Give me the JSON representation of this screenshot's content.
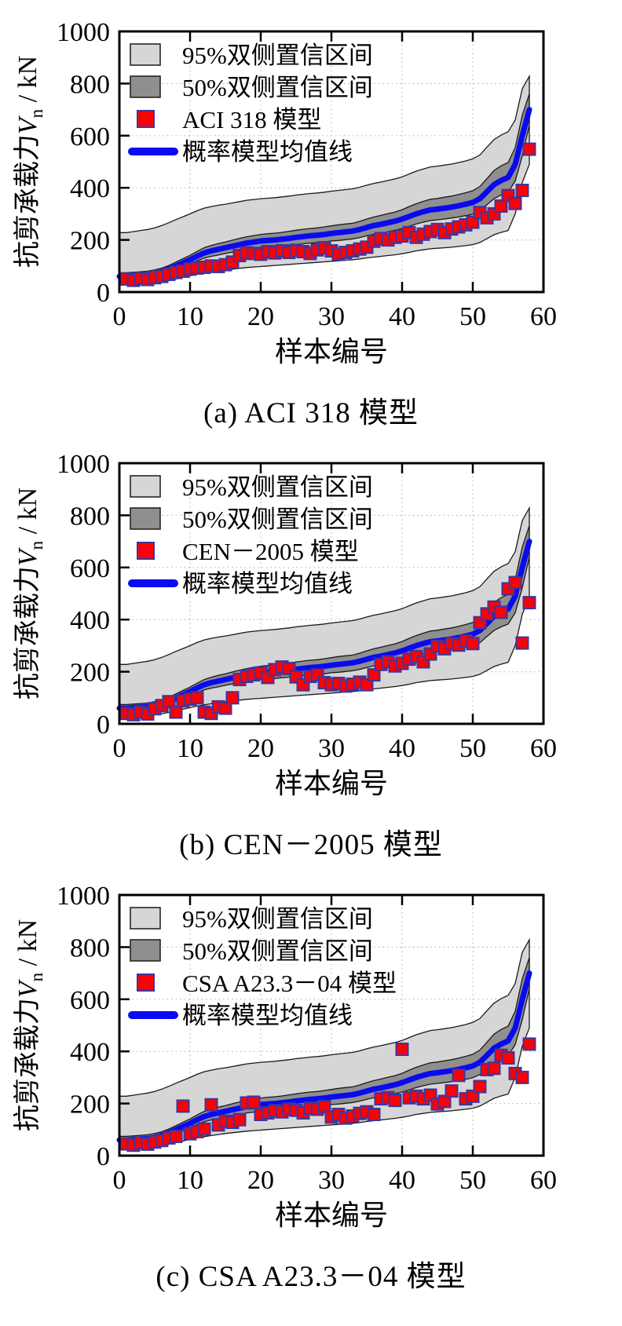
{
  "page": {
    "background": "#ffffff"
  },
  "colors": {
    "ci95_fill": "#d6d6d6",
    "ci50_fill": "#8f8f8f",
    "band_edge": "#1a1a1a",
    "mean_line": "#0a0af0",
    "point_fill": "#fa0205",
    "point_stroke": "#3d35a0",
    "axis": "#000000",
    "grid": "#b8b8b8",
    "text": "#000000"
  },
  "axes": {
    "xlabel": "样本编号",
    "ylabel_prefix": "抗剪承载力",
    "ylabel_variable": "V",
    "ylabel_subscript": "n",
    "ylabel_suffix": " / kN",
    "x_ticks": [
      0,
      10,
      20,
      30,
      40,
      50,
      60
    ],
    "y_ticks": [
      0,
      200,
      400,
      600,
      800,
      1000
    ],
    "x_range": [
      0,
      60
    ],
    "y_range": [
      0,
      1000
    ],
    "grid": "dotted"
  },
  "confidence_model": {
    "x": [
      1,
      2,
      3,
      4,
      5,
      6,
      7,
      8,
      9,
      10,
      11,
      12,
      13,
      14,
      15,
      16,
      17,
      18,
      19,
      20,
      21,
      22,
      23,
      24,
      25,
      26,
      27,
      28,
      29,
      30,
      31,
      32,
      33,
      34,
      35,
      36,
      37,
      38,
      39,
      40,
      41,
      42,
      43,
      44,
      45,
      46,
      47,
      48,
      49,
      50,
      51,
      52,
      53,
      54,
      55,
      56,
      57,
      58
    ],
    "mean": [
      60,
      62,
      64,
      66,
      70,
      78,
      88,
      100,
      112,
      124,
      138,
      150,
      158,
      164,
      170,
      176,
      182,
      188,
      192,
      196,
      198,
      200,
      203,
      206,
      210,
      213,
      216,
      218,
      221,
      225,
      228,
      231,
      234,
      240,
      248,
      255,
      260,
      266,
      272,
      280,
      290,
      300,
      308,
      315,
      318,
      322,
      326,
      331,
      337,
      344,
      358,
      385,
      412,
      428,
      440,
      490,
      600,
      700
    ],
    "ci50_upper": [
      74,
      76,
      78,
      80,
      85,
      92,
      102,
      115,
      128,
      141,
      156,
      170,
      179,
      186,
      192,
      199,
      206,
      212,
      217,
      221,
      224,
      226,
      229,
      233,
      237,
      241,
      244,
      246,
      250,
      254,
      258,
      261,
      264,
      271,
      280,
      288,
      294,
      301,
      307,
      316,
      328,
      339,
      348,
      356,
      359,
      364,
      368,
      374,
      381,
      389,
      405,
      435,
      466,
      484,
      497,
      554,
      678,
      760
    ],
    "ci50_lower": [
      46,
      48,
      50,
      52,
      55,
      64,
      74,
      85,
      96,
      107,
      120,
      130,
      137,
      142,
      148,
      153,
      158,
      164,
      167,
      171,
      172,
      174,
      177,
      179,
      183,
      185,
      188,
      190,
      192,
      196,
      198,
      201,
      204,
      209,
      216,
      222,
      226,
      231,
      237,
      244,
      252,
      261,
      268,
      274,
      277,
      280,
      284,
      288,
      293,
      299,
      311,
      335,
      358,
      372,
      383,
      426,
      522,
      640
    ],
    "ci95_upper": [
      228,
      232,
      236,
      240,
      246,
      255,
      266,
      278,
      289,
      300,
      312,
      322,
      328,
      333,
      337,
      342,
      347,
      352,
      355,
      358,
      360,
      362,
      365,
      368,
      372,
      375,
      378,
      380,
      383,
      387,
      390,
      393,
      396,
      402,
      410,
      417,
      422,
      428,
      434,
      442,
      453,
      464,
      472,
      480,
      483,
      487,
      491,
      497,
      503,
      511,
      526,
      556,
      585,
      602,
      615,
      660,
      780,
      828
    ],
    "ci95_lower": [
      30,
      31,
      32,
      33,
      35,
      39,
      44,
      50,
      56,
      62,
      68,
      73,
      77,
      81,
      85,
      88,
      91,
      94,
      96,
      98,
      100,
      102,
      104,
      106,
      108,
      110,
      112,
      114,
      116,
      118,
      120,
      122,
      124,
      127,
      131,
      134,
      137,
      140,
      143,
      147,
      152,
      158,
      162,
      166,
      168,
      170,
      172,
      175,
      178,
      182,
      190,
      205,
      220,
      229,
      236,
      300,
      420,
      490
    ]
  },
  "chart_data": [
    {
      "type": "area+line+scatter",
      "caption": "(a) ACI 318 模型",
      "legend": [
        "95%双侧置信区间",
        "50%双侧置信区间",
        "ACI 318 模型",
        "概率模型均值线"
      ],
      "model_name": "ACI 318 模型",
      "model_points": [
        50,
        45,
        52,
        48,
        55,
        60,
        68,
        75,
        80,
        88,
        92,
        95,
        100,
        98,
        105,
        115,
        140,
        150,
        148,
        145,
        155,
        150,
        158,
        152,
        160,
        155,
        148,
        162,
        170,
        158,
        145,
        152,
        158,
        165,
        172,
        195,
        205,
        200,
        210,
        215,
        228,
        210,
        222,
        232,
        240,
        228,
        242,
        250,
        258,
        268,
        305,
        285,
        300,
        330,
        370,
        340,
        390,
        548
      ]
    },
    {
      "type": "area+line+scatter",
      "caption": "(b) CEN－2005 模型",
      "legend": [
        "95%双侧置信区间",
        "50%双侧置信区间",
        "CEN－2005 模型",
        "概率模型均值线"
      ],
      "model_name": "CEN－2005 模型",
      "model_points": [
        40,
        35,
        45,
        38,
        58,
        70,
        85,
        45,
        88,
        95,
        100,
        45,
        40,
        65,
        60,
        100,
        170,
        182,
        188,
        195,
        178,
        208,
        218,
        212,
        180,
        150,
        182,
        188,
        158,
        150,
        155,
        145,
        152,
        160,
        150,
        188,
        228,
        238,
        222,
        232,
        248,
        258,
        238,
        268,
        298,
        288,
        308,
        302,
        318,
        308,
        388,
        422,
        448,
        428,
        518,
        542,
        310,
        465
      ]
    },
    {
      "type": "area+line+scatter",
      "caption": "(c) CSA A23.3－04 模型",
      "legend": [
        "95%双侧置信区间",
        "50%双侧置信区间",
        "CSA A23.3－04 模型",
        "概率模型均值线"
      ],
      "model_name": "CSA A23.3－04 模型",
      "model_points": [
        45,
        40,
        48,
        44,
        52,
        58,
        68,
        74,
        190,
        84,
        92,
        102,
        195,
        118,
        132,
        128,
        138,
        202,
        205,
        158,
        164,
        172,
        168,
        178,
        174,
        164,
        182,
        178,
        188,
        148,
        158,
        144,
        152,
        162,
        168,
        158,
        218,
        222,
        212,
        408,
        222,
        228,
        218,
        232,
        198,
        208,
        248,
        308,
        218,
        228,
        265,
        330,
        335,
        385,
        375,
        315,
        300,
        428
      ]
    }
  ]
}
